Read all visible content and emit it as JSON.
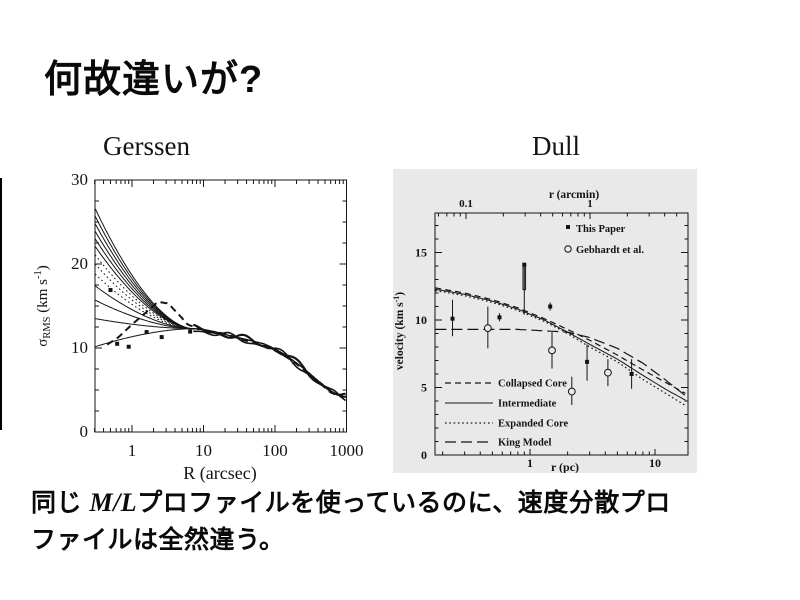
{
  "slide": {
    "title": "何故違いが?",
    "caption": {
      "line1_pre": "同じ ",
      "math": "M/L",
      "line1_post": "プロファイルを使っているのに、速度分散プロ",
      "line2": "ファイルは全然違う。"
    }
  },
  "figures": {
    "left_label": "Gerssen",
    "right_label": "Dull"
  },
  "chart_data": [
    {
      "type": "line",
      "panel": "Gerssen",
      "xlabel": "R (arcsec)",
      "ylabel_parts": [
        {
          "t": "σ"
        },
        {
          "t": "RMS",
          "pos": "sub"
        },
        {
          "t": " (km s"
        },
        {
          "t": "-1",
          "pos": "sup"
        },
        {
          "t": ")"
        }
      ],
      "xscale": "log",
      "xlim": [
        0.3,
        1000
      ],
      "ylim": [
        0,
        30
      ],
      "xticks": [
        1,
        10,
        100,
        1000
      ],
      "yticks": [
        0,
        10,
        20,
        30
      ],
      "y_minor_step": 2.5,
      "models": {
        "start_values_at_R0.3": [
          26.6,
          25.7,
          24.8,
          23.9,
          23.0,
          22.1,
          21.1,
          20.0,
          18.8,
          17.4,
          15.7,
          13.5,
          10.15
        ],
        "styles": [
          "solid",
          "solid",
          "solid",
          "solid",
          "solid",
          "solid",
          "dotted",
          "dotted",
          "dotted",
          "solid",
          "solid",
          "solid",
          "solid"
        ],
        "convergence_point": {
          "R": 7,
          "sigma": 12.3
        }
      },
      "outer_profile": [
        [
          7,
          12.3
        ],
        [
          10,
          12.2
        ],
        [
          15,
          11.9
        ],
        [
          25,
          11.4
        ],
        [
          40,
          11.0
        ],
        [
          70,
          10.5
        ],
        [
          100,
          9.9
        ],
        [
          150,
          9.0
        ],
        [
          250,
          7.6
        ],
        [
          400,
          6.1
        ],
        [
          600,
          4.9
        ],
        [
          800,
          4.3
        ],
        [
          1000,
          4.15
        ]
      ],
      "observed_dashed": [
        [
          0.45,
          10.4
        ],
        [
          0.65,
          11.3
        ],
        [
          1.0,
          12.8
        ],
        [
          1.6,
          14.3
        ],
        [
          2.3,
          15.5
        ],
        [
          3.2,
          15.3
        ],
        [
          4.5,
          14.0
        ],
        [
          6.0,
          12.8
        ],
        [
          8,
          12.4
        ],
        [
          12,
          12.0
        ],
        [
          20,
          11.7
        ],
        [
          35,
          11.0
        ],
        [
          60,
          10.4
        ],
        [
          100,
          9.7
        ],
        [
          160,
          8.7
        ],
        [
          250,
          7.5
        ],
        [
          400,
          6.0
        ],
        [
          600,
          4.7
        ],
        [
          850,
          4.2
        ],
        [
          1000,
          4.2
        ]
      ],
      "marker_points": [
        [
          0.5,
          16.9
        ],
        [
          0.62,
          10.5
        ],
        [
          0.9,
          10.15
        ],
        [
          1.6,
          11.9
        ],
        [
          2.6,
          11.3
        ],
        [
          6.5,
          11.95
        ]
      ]
    },
    {
      "type": "line+scatter",
      "panel": "Dull",
      "xlabel": "r (pc)",
      "top_xlabel": "r (arcmin)",
      "ylabel_parts": [
        {
          "t": "velocity (km s"
        },
        {
          "t": "-1",
          "pos": "sup"
        },
        {
          "t": ")"
        }
      ],
      "xscale": "log",
      "xlim": [
        0.17,
        18.4
      ],
      "ylim": [
        0,
        18
      ],
      "xticks": [
        1,
        10
      ],
      "top_xticks": [
        0.1,
        1
      ],
      "yticks": [
        0,
        5,
        10,
        15
      ],
      "series": [
        {
          "name": "Collapsed Core",
          "style": "dashed",
          "points": [
            [
              0.17,
              12.4
            ],
            [
              0.3,
              12.0
            ],
            [
              0.5,
              11.5
            ],
            [
              0.8,
              10.9
            ],
            [
              1.3,
              10.1
            ],
            [
              2,
              9.3
            ],
            [
              3,
              8.5
            ],
            [
              5,
              7.4
            ],
            [
              8,
              6.3
            ],
            [
              12,
              5.4
            ],
            [
              18,
              4.5
            ]
          ]
        },
        {
          "name": "Intermediate",
          "style": "solid",
          "points": [
            [
              0.17,
              12.3
            ],
            [
              0.3,
              11.9
            ],
            [
              0.5,
              11.4
            ],
            [
              0.8,
              10.8
            ],
            [
              1.3,
              10.0
            ],
            [
              2,
              9.1
            ],
            [
              3,
              8.2
            ],
            [
              5,
              7.1
            ],
            [
              8,
              5.9
            ],
            [
              12,
              4.9
            ],
            [
              18,
              4.0
            ]
          ]
        },
        {
          "name": "Expanded Core",
          "style": "dotted",
          "points": [
            [
              0.17,
              12.2
            ],
            [
              0.3,
              11.8
            ],
            [
              0.5,
              11.3
            ],
            [
              0.8,
              10.7
            ],
            [
              1.3,
              9.9
            ],
            [
              2,
              9.0
            ],
            [
              3,
              8.0
            ],
            [
              5,
              6.9
            ],
            [
              8,
              5.6
            ],
            [
              12,
              4.6
            ],
            [
              18,
              3.6
            ]
          ]
        },
        {
          "name": "King Model",
          "style": "long-dash",
          "points": [
            [
              0.17,
              9.3
            ],
            [
              0.4,
              9.3
            ],
            [
              0.8,
              9.3
            ],
            [
              1.3,
              9.2
            ],
            [
              2,
              9.1
            ],
            [
              3,
              8.7
            ],
            [
              5,
              7.9
            ],
            [
              8,
              6.8
            ],
            [
              12,
              5.6
            ],
            [
              18,
              4.3
            ]
          ]
        }
      ],
      "scatter": [
        {
          "name": "This Paper",
          "marker": "filled-square",
          "points": [
            {
              "x": 0.24,
              "y": 10.1,
              "lo": 8.8,
              "hi": 11.5
            },
            {
              "x": 0.57,
              "y": 10.2,
              "lo": 9.9,
              "hi": 10.5
            },
            {
              "x": 1.45,
              "y": 11.0,
              "lo": 10.7,
              "hi": 11.3
            },
            {
              "x": 2.86,
              "y": 6.9,
              "lo": 5.5,
              "hi": 8.2
            },
            {
              "x": 6.5,
              "y": 6.0,
              "lo": 4.9,
              "hi": 7.1
            }
          ]
        },
        {
          "name": "Gebhardt et al.",
          "marker": "open-circle",
          "points": [
            {
              "x": 0.46,
              "y": 9.4,
              "lo": 7.9,
              "hi": 11.0
            },
            {
              "x": 1.5,
              "y": 7.75,
              "lo": 6.4,
              "hi": 9.1
            },
            {
              "x": 2.16,
              "y": 4.7,
              "lo": 3.7,
              "hi": 5.8
            },
            {
              "x": 4.2,
              "y": 6.1,
              "lo": 5.1,
              "hi": 7.1
            }
          ]
        }
      ],
      "lower_limit_arrow": {
        "x": 0.9,
        "from": 10.4,
        "to": 14.1
      }
    }
  ]
}
